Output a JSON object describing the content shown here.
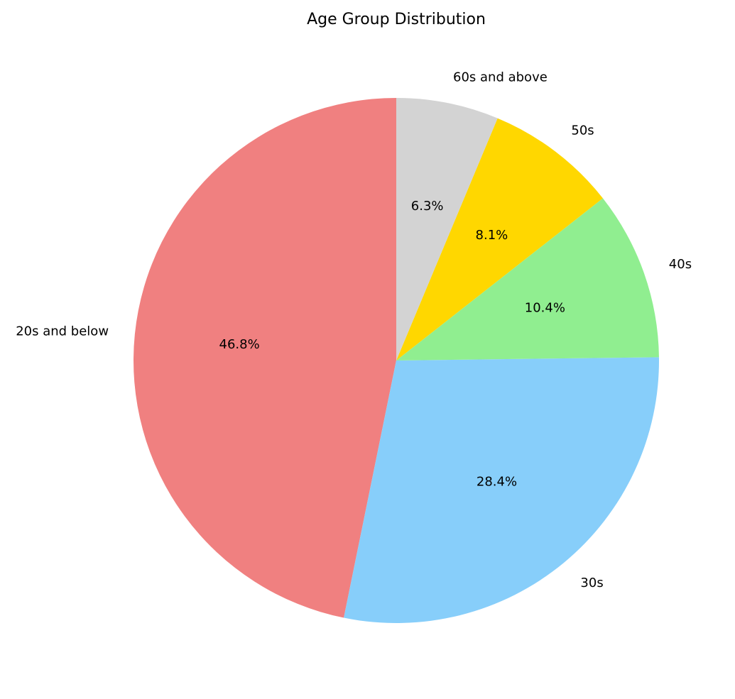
{
  "chart_data": {
    "type": "pie",
    "title": "Age Group Distribution",
    "start_angle_deg": 90,
    "direction": "counterclockwise",
    "slices": [
      {
        "label": "20s and below",
        "value": 46.8,
        "pct_label": "46.8%",
        "color": "#f08080"
      },
      {
        "label": "30s",
        "value": 28.4,
        "pct_label": "28.4%",
        "color": "#87cefa"
      },
      {
        "label": "40s",
        "value": 10.4,
        "pct_label": "10.4%",
        "color": "#90ee90"
      },
      {
        "label": "50s",
        "value": 8.1,
        "pct_label": "8.1%",
        "color": "#ffd700"
      },
      {
        "label": "60s and above",
        "value": 6.3,
        "pct_label": "6.3%",
        "color": "#d3d3d3"
      }
    ]
  }
}
